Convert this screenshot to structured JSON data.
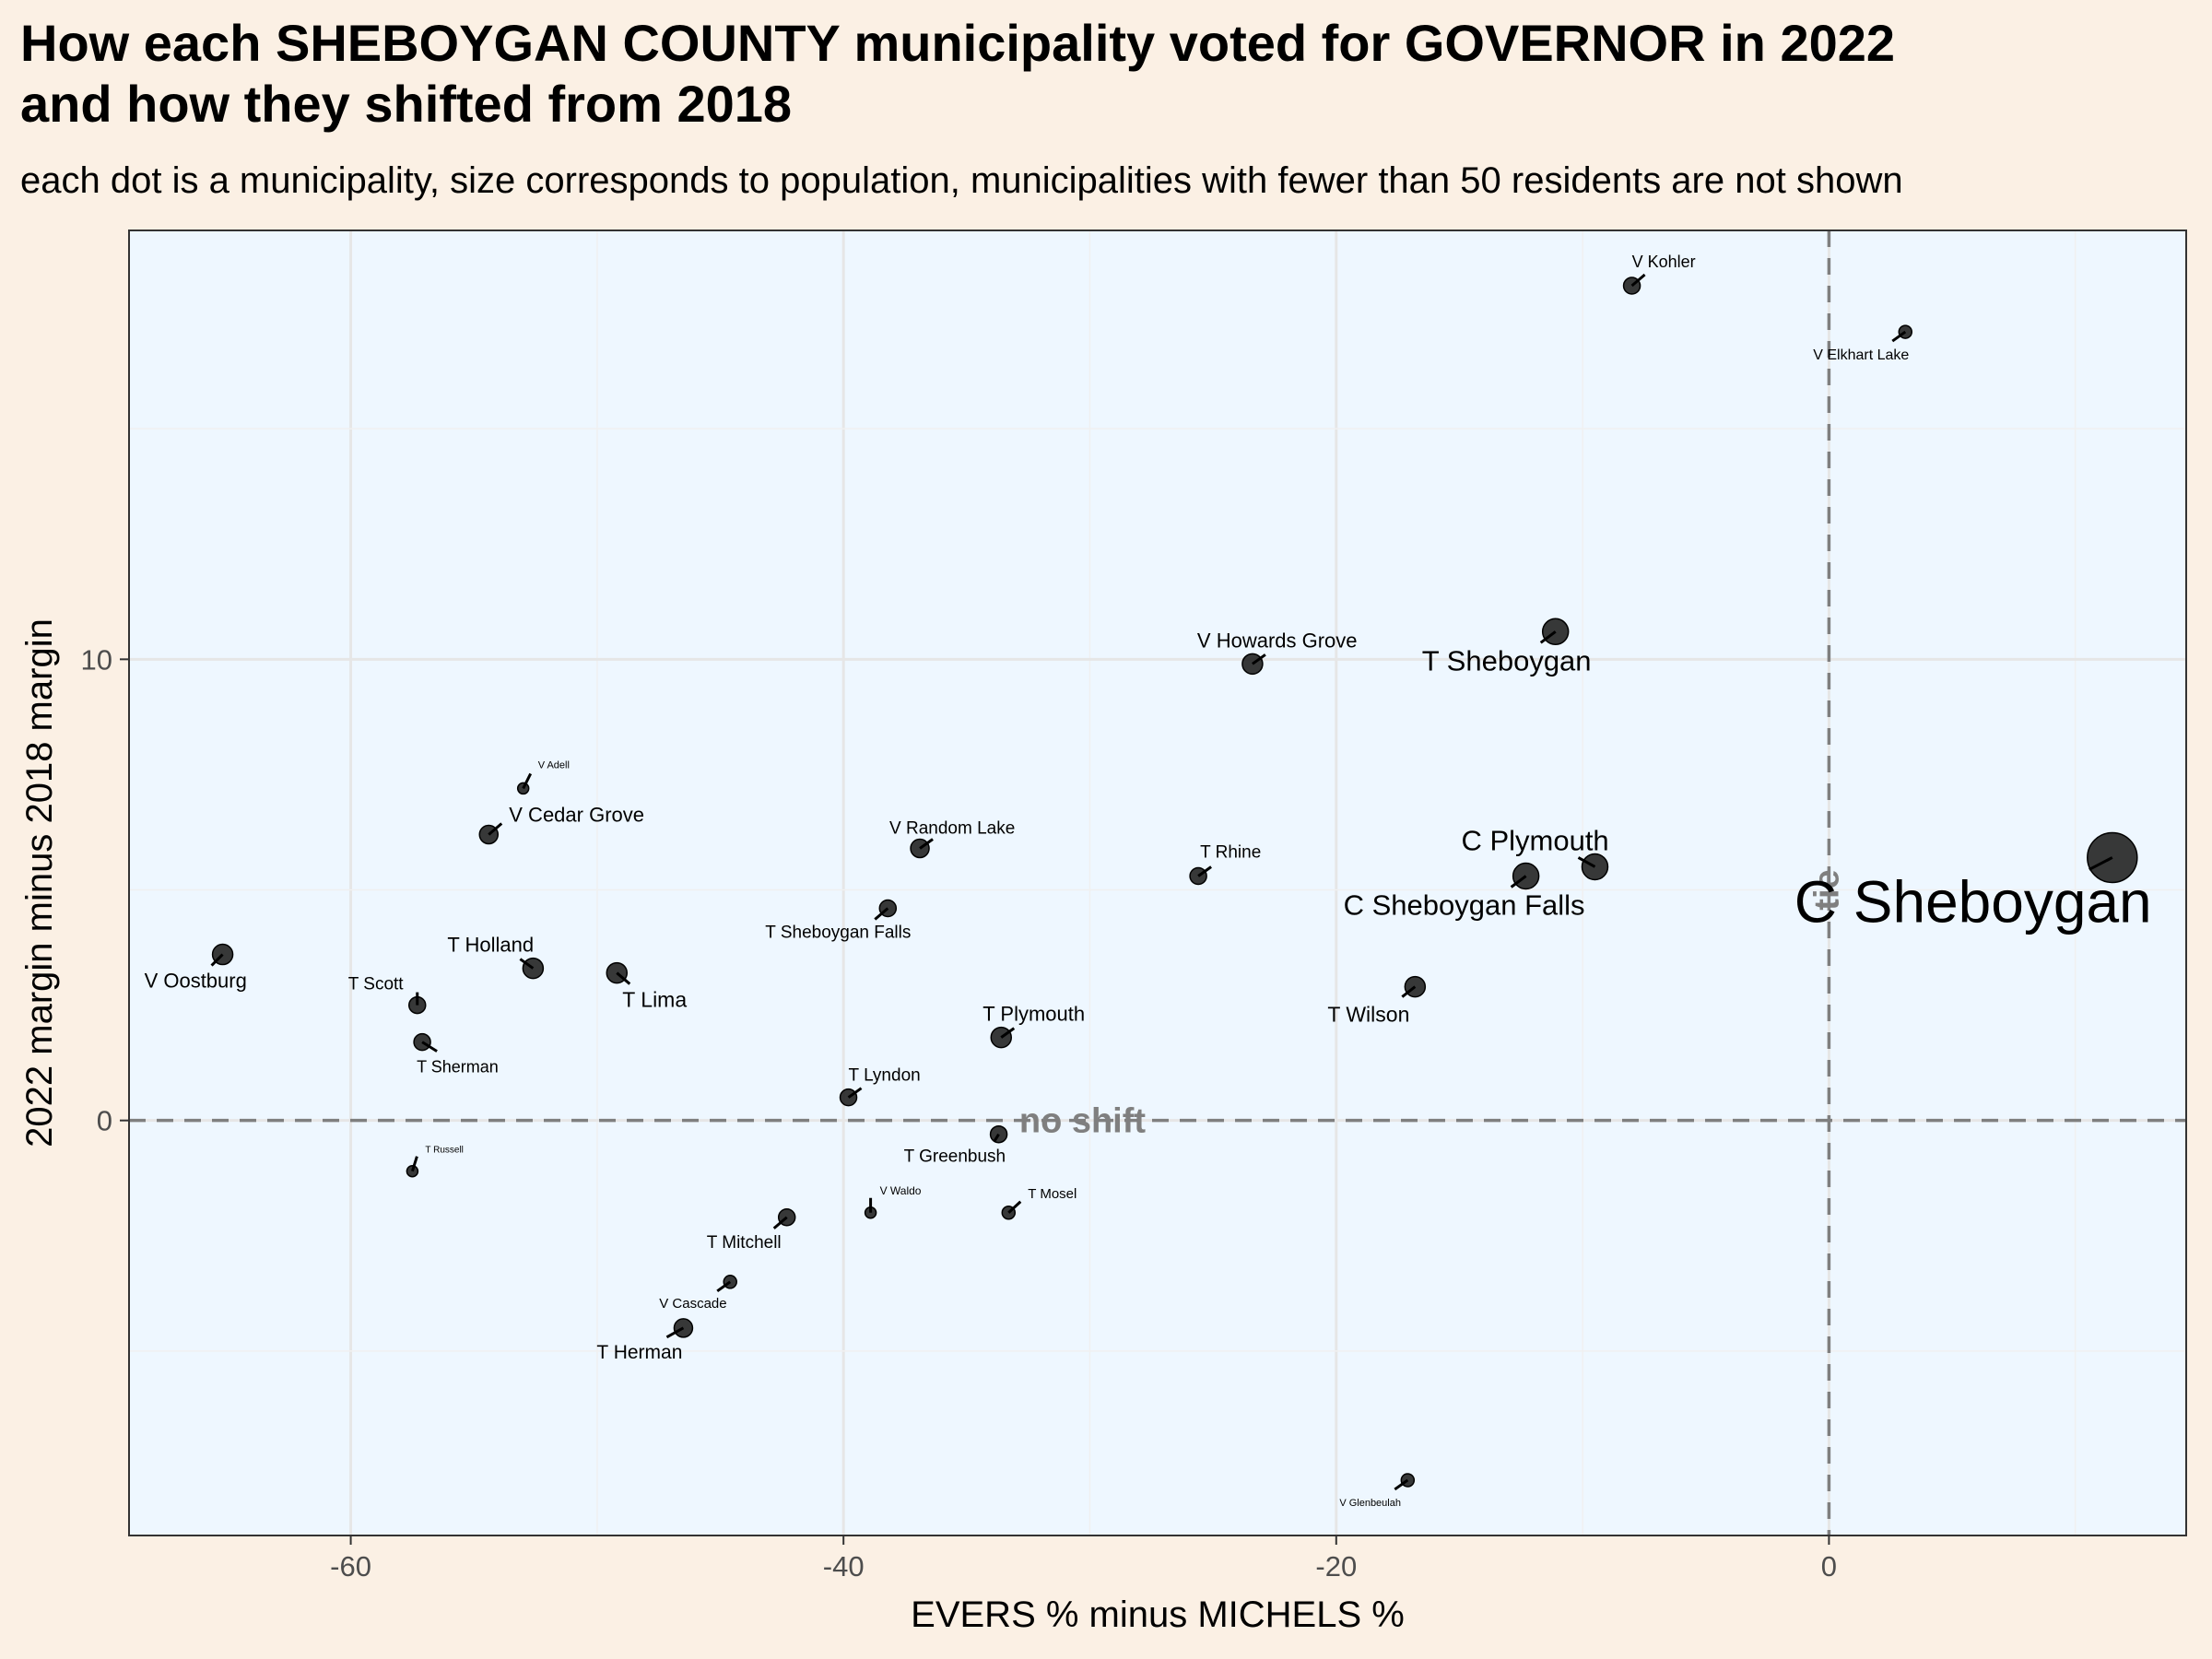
{
  "title": "How each SHEBOYGAN COUNTY municipality voted for GOVERNOR in 2022\nand how they shifted from 2018",
  "subtitle": "each dot is a municipality, size corresponds to population, municipalities with fewer than 50 residents are not shown",
  "colors": {
    "page_background": "#fbf0e4",
    "panel_background": "#eef7ff",
    "point": "#222222",
    "reference_line": "#7f7f7f"
  },
  "chart_data": {
    "type": "scatter",
    "xlabel": "EVERS % minus MICHELS %",
    "ylabel": "2022 margin minus 2018 margin",
    "xlim": [
      -69,
      14.5
    ],
    "ylim": [
      -9,
      19.3
    ],
    "x_ticks": [
      -60,
      -40,
      -20,
      0
    ],
    "y_ticks": [
      0,
      10
    ],
    "grid": true,
    "reference_lines": [
      {
        "axis": "y",
        "value": 0,
        "label": "no shift",
        "style": "dashed"
      },
      {
        "axis": "x",
        "value": 0,
        "label": "tie",
        "style": "dashed"
      }
    ],
    "points": [
      {
        "name": "V Kohler",
        "x": -8,
        "y": 18.1,
        "size": 9
      },
      {
        "name": "V Elkhart Lake",
        "x": 3.1,
        "y": 17.1,
        "size": 7
      },
      {
        "name": "V Howards Grove",
        "x": -23.4,
        "y": 9.9,
        "size": 11
      },
      {
        "name": "T Sheboygan",
        "x": -11.1,
        "y": 10.6,
        "size": 14
      },
      {
        "name": "C Plymouth",
        "x": -9.5,
        "y": 5.5,
        "size": 14
      },
      {
        "name": "C Sheboygan Falls",
        "x": -12.3,
        "y": 5.3,
        "size": 14
      },
      {
        "name": "C Sheboygan",
        "x": 11.5,
        "y": 5.7,
        "size": 27
      },
      {
        "name": "T Rhine",
        "x": -25.6,
        "y": 5.3,
        "size": 9
      },
      {
        "name": "T Wilson",
        "x": -16.8,
        "y": 2.9,
        "size": 11
      },
      {
        "name": "V Random Lake",
        "x": -36.9,
        "y": 5.9,
        "size": 10
      },
      {
        "name": "T Sheboygan Falls",
        "x": -38.2,
        "y": 4.6,
        "size": 9
      },
      {
        "name": "T Plymouth",
        "x": -33.6,
        "y": 1.8,
        "size": 11
      },
      {
        "name": "T Lyndon",
        "x": -39.8,
        "y": 0.5,
        "size": 9
      },
      {
        "name": "T Greenbush",
        "x": -33.7,
        "y": -0.3,
        "size": 9
      },
      {
        "name": "V Adell",
        "x": -53,
        "y": 7.2,
        "size": 6
      },
      {
        "name": "V Cedar Grove",
        "x": -54.4,
        "y": 6.2,
        "size": 10
      },
      {
        "name": "V Oostburg",
        "x": -65.2,
        "y": 3.6,
        "size": 11
      },
      {
        "name": "T Holland",
        "x": -52.6,
        "y": 3.3,
        "size": 11
      },
      {
        "name": "T Lima",
        "x": -49.2,
        "y": 3.2,
        "size": 11
      },
      {
        "name": "T Scott",
        "x": -57.3,
        "y": 2.5,
        "size": 9
      },
      {
        "name": "T Sherman",
        "x": -57.1,
        "y": 1.7,
        "size": 9
      },
      {
        "name": "T Russell",
        "x": -57.5,
        "y": -1.1,
        "size": 6
      },
      {
        "name": "V Waldo",
        "x": -38.9,
        "y": -2.0,
        "size": 6
      },
      {
        "name": "T Mosel",
        "x": -33.3,
        "y": -2.0,
        "size": 7
      },
      {
        "name": "T Mitchell",
        "x": -42.3,
        "y": -2.1,
        "size": 9
      },
      {
        "name": "V Cascade",
        "x": -44.6,
        "y": -3.5,
        "size": 7
      },
      {
        "name": "T Herman",
        "x": -46.5,
        "y": -4.5,
        "size": 10
      },
      {
        "name": "V Glenbeulah",
        "x": -17.1,
        "y": -7.8,
        "size": 7
      }
    ]
  }
}
